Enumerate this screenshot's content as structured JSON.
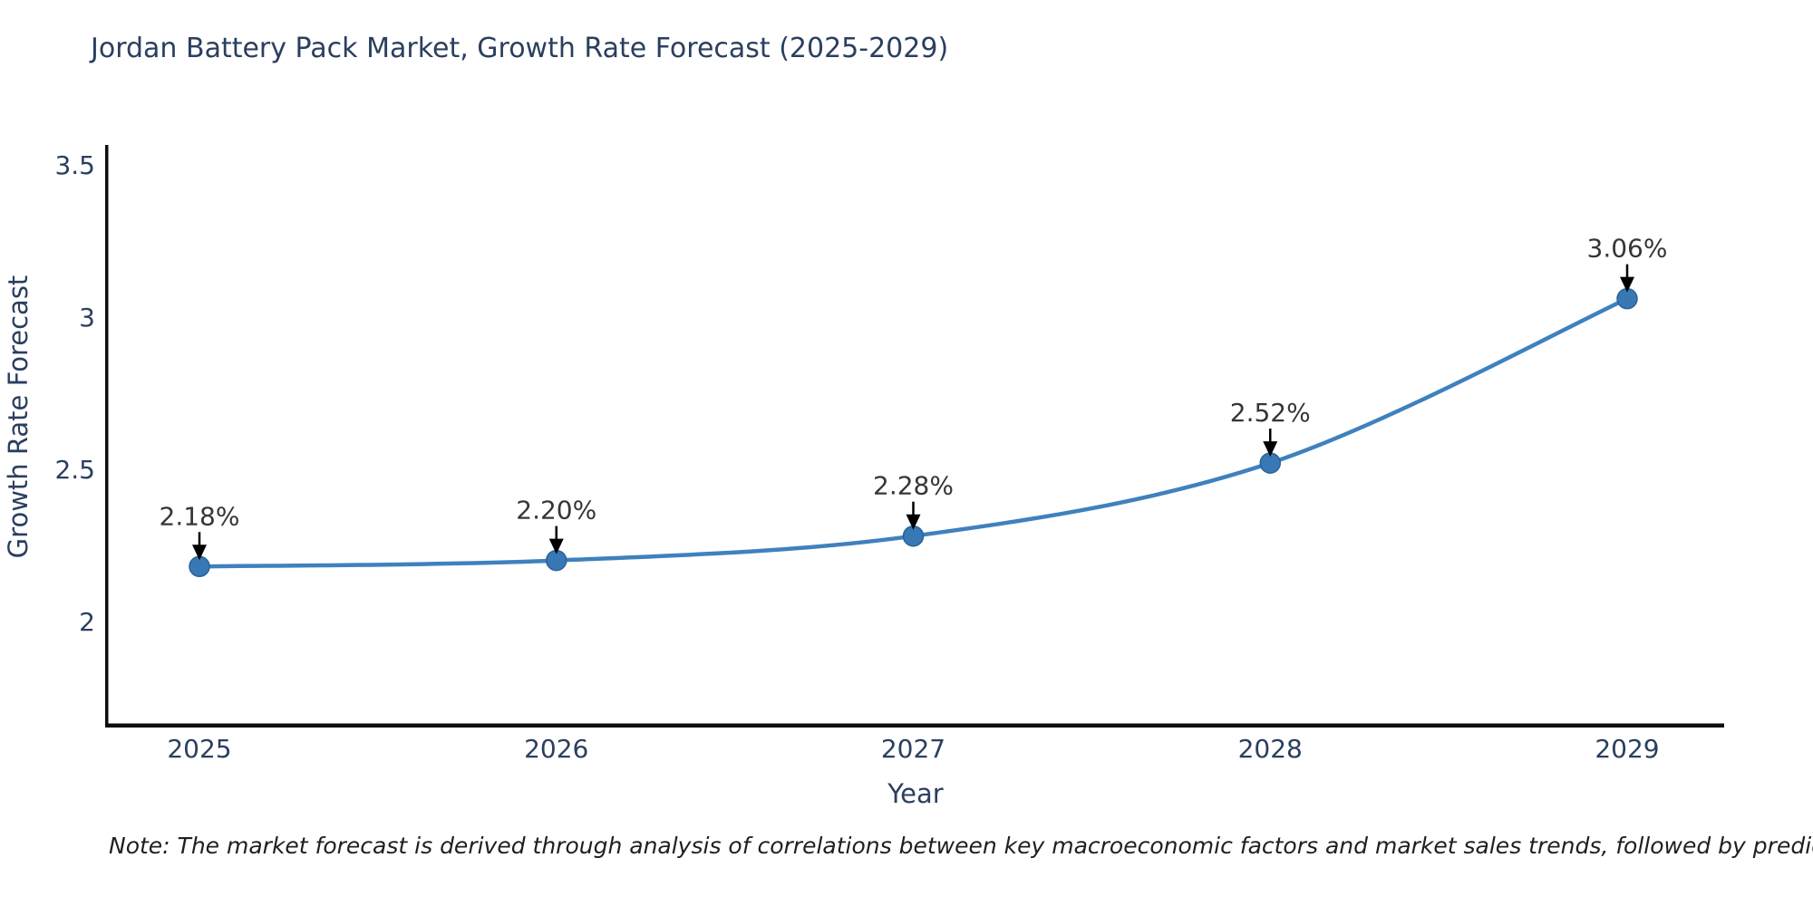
{
  "chart_data": {
    "type": "line",
    "title": "Jordan Battery Pack Market, Growth Rate Forecast (2025-2029)",
    "xlabel": "Year",
    "ylabel": "Growth Rate Forecast",
    "categories": [
      "2025",
      "2026",
      "2027",
      "2028",
      "2029"
    ],
    "series": [
      {
        "name": "Growth Rate Forecast",
        "values": [
          2.18,
          2.2,
          2.28,
          2.52,
          3.06
        ],
        "point_labels": [
          "2.18%",
          "2.20%",
          "2.28%",
          "2.52%",
          "3.06%"
        ]
      }
    ],
    "y_ticks": [
      2,
      2.5,
      3,
      3.5
    ],
    "y_tick_labels": [
      "2",
      "2.5",
      "3",
      "3.5"
    ],
    "ylim": [
      1.66,
      3.565
    ],
    "line_shape": "spline",
    "grid": false,
    "legend_position": "none",
    "annotations_have_arrows": true,
    "colors": {
      "line": "#3f81bd",
      "marker_fill": "#3878b4",
      "marker_edge": "#2a6398",
      "arrow": "#000000",
      "axis_line": "#0d0d0d",
      "title_text": "#2a3f5f",
      "tick_text": "#2a3f5f",
      "annotation_text": "#363636",
      "background": "#ffffff"
    }
  },
  "note": {
    "text": "Note: The market forecast is derived through analysis of correlations between key macroeconomic factors and market sales trends, followed by predictive modeling to project future sales"
  }
}
